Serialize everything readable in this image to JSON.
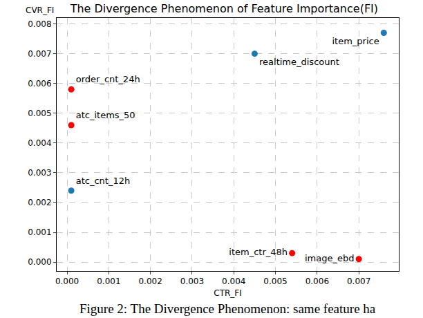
{
  "chart_data": {
    "type": "scatter",
    "title": "The Divergence Phenomenon of Feature Importance(FI)",
    "x_label": "CTR_FI",
    "y_label": "CVR_FI",
    "caption": "Figure 2: The Divergence Phenomenon: same feature ha",
    "point_labels": [
      "order_cnt_24h",
      "atc_items_50",
      "atc_cnt_12h",
      "realtime_discount",
      "item_price",
      "item_ctr_48h",
      "image_ebd"
    ],
    "x": [
      0.0001,
      0.0001,
      0.0001,
      0.0045,
      0.0076,
      0.0054,
      0.007
    ],
    "y": [
      0.0058,
      0.0046,
      0.0024,
      0.007,
      0.0077,
      0.0003,
      0.0001
    ],
    "colors": [
      "#ff0000",
      "#ff0000",
      "#1f77b4",
      "#1f77b4",
      "#1f77b4",
      "#ff0000",
      "#ff0000"
    ],
    "xlim": [
      -0.00025,
      0.00796
    ],
    "ylim": [
      -0.0003,
      0.0082
    ],
    "xticks": [
      {
        "value": 0,
        "label": "0.000"
      },
      {
        "value": 0.001,
        "label": "0.001"
      },
      {
        "value": 0.002,
        "label": "0.002"
      },
      {
        "value": 0.003,
        "label": "0.003"
      },
      {
        "value": 0.004,
        "label": "0.004"
      },
      {
        "value": 0.005,
        "label": "0.005"
      },
      {
        "value": 0.006,
        "label": "0.006"
      },
      {
        "value": 0.007,
        "label": "0.007"
      }
    ],
    "yticks": [
      {
        "value": 0,
        "label": "0.000"
      },
      {
        "value": 0.001,
        "label": "0.001"
      },
      {
        "value": 0.002,
        "label": "0.002"
      },
      {
        "value": 0.003,
        "label": "0.003"
      },
      {
        "value": 0.004,
        "label": "0.004"
      },
      {
        "value": 0.005,
        "label": "0.005"
      },
      {
        "value": 0.006,
        "label": "0.006"
      },
      {
        "value": 0.007,
        "label": "0.007"
      },
      {
        "value": 0.008,
        "label": "0.008"
      }
    ],
    "grid": true
  }
}
